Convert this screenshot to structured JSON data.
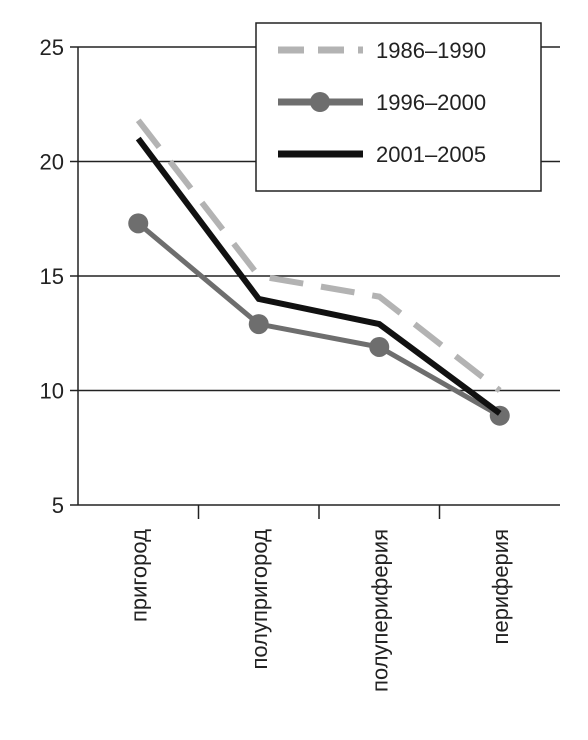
{
  "chart_data": {
    "type": "line",
    "title": "",
    "xlabel": "",
    "ylabel": "",
    "categories": [
      "пригород",
      "полупригород",
      "полупериферия",
      "периферия"
    ],
    "ylim": [
      5,
      25
    ],
    "yticks": [
      "5",
      "10",
      "15",
      "20",
      "25"
    ],
    "grid": "horizontal",
    "legend_position": "top-right",
    "series": [
      {
        "name": "1986–1990",
        "values": [
          21.8,
          15,
          14.1,
          10
        ],
        "color": "#b3b3b3",
        "style": "dashed",
        "marker": "none"
      },
      {
        "name": "1996–2000",
        "values": [
          17.3,
          12.9,
          11.9,
          8.9
        ],
        "color": "#6e6e6e",
        "style": "solid",
        "marker": "circle"
      },
      {
        "name": "2001–2005",
        "values": [
          21,
          14,
          12.9,
          9
        ],
        "color": "#111111",
        "style": "solid",
        "marker": "none"
      }
    ]
  }
}
